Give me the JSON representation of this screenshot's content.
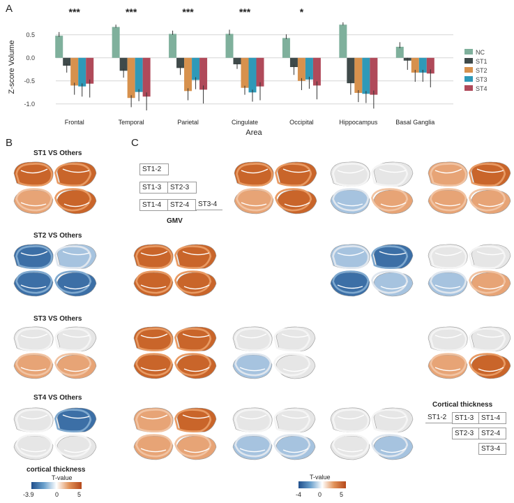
{
  "panels": {
    "a": "A",
    "b": "B",
    "c": "C"
  },
  "chart_data": {
    "type": "bar",
    "title": "",
    "xlabel": "Area",
    "ylabel": "Z-score Volume",
    "ylim": [
      -1.2,
      0.8
    ],
    "yticks": [
      "0.5",
      "0.0",
      "-0.5",
      "-1.0"
    ],
    "categories": [
      "Frontal",
      "Temporal",
      "Parietal",
      "Cingulate",
      "Occipital",
      "Hippocampus",
      "Basal Ganglia"
    ],
    "significance": [
      "***",
      "***",
      "***",
      "***",
      "*",
      "",
      ""
    ],
    "series": [
      {
        "name": "NC",
        "color": "#7fb09c",
        "values": [
          0.48,
          0.67,
          0.52,
          0.52,
          0.43,
          0.72,
          0.24
        ],
        "errors": [
          0.08,
          0.05,
          0.07,
          0.09,
          0.08,
          0.05,
          0.1
        ]
      },
      {
        "name": "ST1",
        "color": "#3f4a4a",
        "values": [
          -0.17,
          -0.28,
          -0.22,
          -0.14,
          -0.2,
          -0.55,
          -0.06
        ],
        "errors": [
          0.15,
          0.15,
          0.15,
          0.1,
          0.17,
          0.25,
          0.2
        ]
      },
      {
        "name": "ST2",
        "color": "#d7914d",
        "values": [
          -0.6,
          -0.87,
          -0.72,
          -0.65,
          -0.5,
          -0.76,
          -0.32
        ],
        "errors": [
          0.2,
          0.2,
          0.2,
          0.15,
          0.2,
          0.2,
          0.2
        ]
      },
      {
        "name": "ST3",
        "color": "#2f99b8",
        "values": [
          -0.62,
          -0.74,
          -0.48,
          -0.75,
          -0.47,
          -0.78,
          -0.32
        ],
        "errors": [
          0.22,
          0.2,
          0.2,
          0.2,
          0.2,
          0.2,
          0.2
        ]
      },
      {
        "name": "ST4",
        "color": "#b04a5a",
        "values": [
          -0.56,
          -0.84,
          -0.69,
          -0.62,
          -0.6,
          -0.8,
          -0.34
        ],
        "errors": [
          0.3,
          0.3,
          0.3,
          0.3,
          0.3,
          0.3,
          0.3
        ]
      }
    ]
  },
  "panel_b": {
    "rows": [
      "ST1 VS Others",
      "ST2 VS Others",
      "ST3 VS Others",
      "ST4 VS Others"
    ],
    "colorbar": {
      "title": "cortical thickness",
      "subtitle": "T-value",
      "min": "-3.9",
      "mid": "0",
      "max": "5"
    }
  },
  "panel_c": {
    "gmv_grid": {
      "cells": [
        "ST1-2",
        "ST1-3",
        "ST2-3",
        "ST1-4",
        "ST2-4",
        "ST3-4"
      ],
      "caption": "GMV"
    },
    "ct_grid": {
      "title": "Cortical thickness",
      "cells": [
        "ST1-2",
        "ST1-3",
        "ST1-4",
        "ST2-3",
        "ST2-4",
        "ST3-4"
      ]
    },
    "colorbar": {
      "title": "T-value",
      "min": "-4",
      "mid": "0",
      "max": "5"
    }
  }
}
